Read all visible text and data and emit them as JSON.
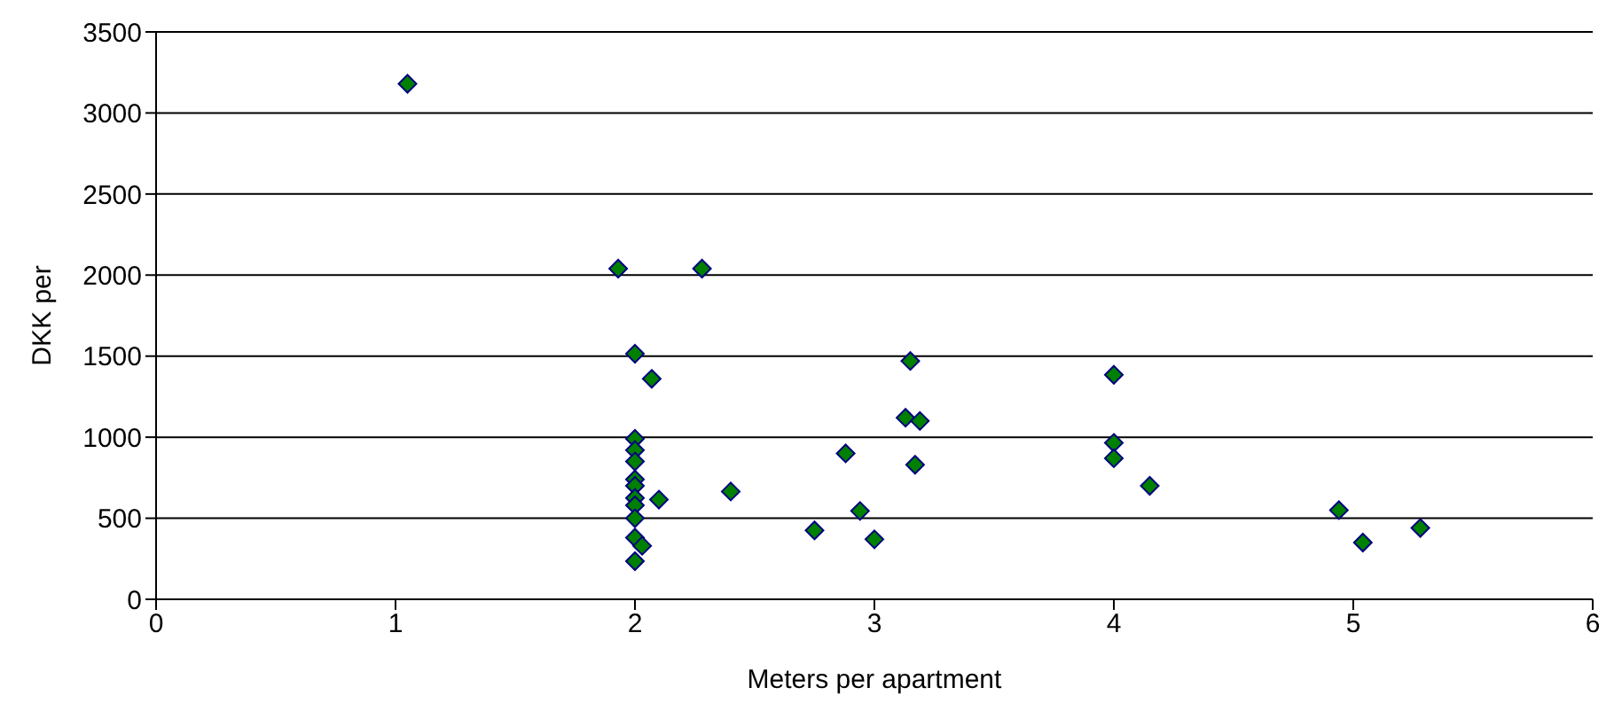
{
  "chart_data": {
    "type": "scatter",
    "xlabel": "Meters per apartment",
    "ylabel": "DKK per",
    "xlim": [
      0,
      6
    ],
    "xticks": [
      0,
      1,
      2,
      3,
      4,
      5,
      6
    ],
    "ylim": [
      0,
      3500
    ],
    "yticks": [
      0,
      500,
      1000,
      1500,
      2000,
      2500,
      3000,
      3500
    ],
    "grid": "y",
    "marker": "diamond",
    "legend": false,
    "series": [
      {
        "color": "#008000",
        "x": [
          1.05,
          1.93,
          2.28,
          2,
          2.07,
          2,
          2,
          2,
          2,
          2,
          2,
          2,
          2,
          2,
          2.03,
          2,
          2.1,
          2.4,
          2.75,
          2.88,
          2.94,
          3,
          3.15,
          3.13,
          3.19,
          3.17,
          4,
          4,
          4,
          4.15,
          4.94,
          5.04,
          5.28
        ],
        "values": [
          3180,
          2040,
          2040,
          1515,
          1360,
          990,
          920,
          850,
          740,
          700,
          625,
          580,
          500,
          380,
          330,
          235,
          615,
          665,
          425,
          900,
          545,
          370,
          1470,
          1120,
          1100,
          830,
          1385,
          965,
          870,
          700,
          550,
          350,
          440
        ]
      }
    ]
  }
}
